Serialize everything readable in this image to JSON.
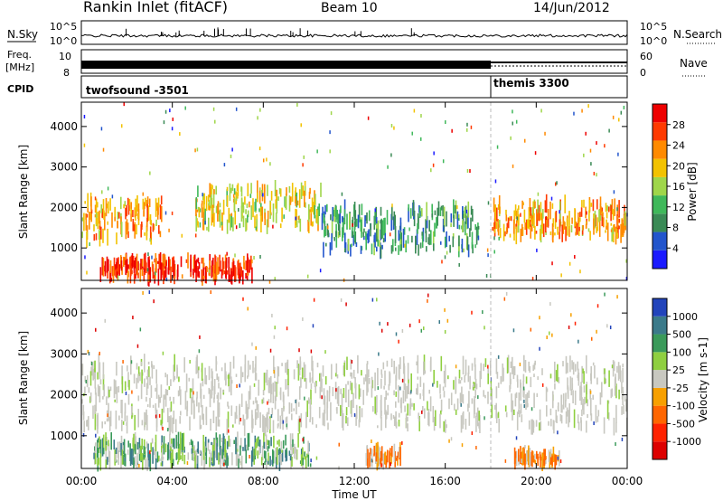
{
  "header": {
    "station": "Rankin Inlet (fitACF)",
    "beam": "Beam 10",
    "date": "14/Jun/2012"
  },
  "left_labels": {
    "nsky": "N.Sky",
    "freq": "Freq.",
    "freq_unit": "[MHz]",
    "cpid": "CPID"
  },
  "right_labels": {
    "nsearch": "N.Search",
    "nave": "Nave"
  },
  "panel_ticks": {
    "noise_left": [
      "10^5",
      "10^0"
    ],
    "noise_right": [
      "10^5",
      "10^0"
    ],
    "freq_left": [
      "10",
      "8"
    ],
    "nave_right": [
      "60",
      "0"
    ]
  },
  "cpid_segments": [
    {
      "label": "twofsound -3501",
      "start_hour": 0
    },
    {
      "label": "themis 3300",
      "start_hour": 18
    }
  ],
  "colors": {
    "scale": [
      "#1a1aff",
      "#2255cc",
      "#3a8a55",
      "#3fb85a",
      "#9fd64a",
      "#f2c200",
      "#ff8a00",
      "#ff3a00",
      "#ee0000"
    ],
    "velocity": [
      "#2244bb",
      "#3b7a8a",
      "#3a9a5a",
      "#8fcf40",
      "#c8c8c0",
      "#f7a000",
      "#ff6600",
      "#ff2200",
      "#dd0000"
    ]
  },
  "chart_data": [
    {
      "type": "heatmap",
      "title": "",
      "xlabel": "Time UT",
      "ylabel": "Slant Range [km]",
      "x_range_hours": [
        0,
        24
      ],
      "x_ticks": [
        "00:00",
        "04:00",
        "08:00",
        "12:00",
        "16:00",
        "20:00",
        "00:00"
      ],
      "y_range": [
        200,
        4600
      ],
      "y_ticks": [
        1000,
        2000,
        3000,
        4000
      ],
      "colorbar": {
        "label": "Power [dB]",
        "ticks": [
          4,
          8,
          12,
          16,
          20,
          24,
          28
        ],
        "range": [
          0,
          32
        ]
      },
      "features": [
        {
          "desc": "ground scatter band",
          "t_start": 0.8,
          "t_end": 7.5,
          "r_min": 250,
          "r_max": 700,
          "value": 28
        },
        {
          "desc": "ionospheric band early",
          "t_start": 0.0,
          "t_end": 3.5,
          "r_min": 1200,
          "r_max": 2200,
          "value": 22
        },
        {
          "desc": "ionospheric band morning",
          "t_start": 5.0,
          "t_end": 10.5,
          "r_min": 1500,
          "r_max": 2500,
          "value": 18
        },
        {
          "desc": "mid-day patches",
          "t_start": 10.5,
          "t_end": 17.5,
          "r_min": 900,
          "r_max": 2000,
          "value": 10
        },
        {
          "desc": "evening band",
          "t_start": 18.0,
          "t_end": 24.0,
          "r_min": 1300,
          "r_max": 2100,
          "value": 22
        }
      ]
    },
    {
      "type": "heatmap",
      "title": "",
      "xlabel": "Time UT",
      "ylabel": "Slant Range [km]",
      "x_range_hours": [
        0,
        24
      ],
      "x_ticks": [
        "00:00",
        "04:00",
        "08:00",
        "12:00",
        "16:00",
        "20:00",
        "00:00"
      ],
      "y_range": [
        200,
        4600
      ],
      "y_ticks": [
        1000,
        2000,
        3000,
        4000
      ],
      "colorbar": {
        "label": "Velocity [m s-1]",
        "tick_labels": [
          "1000",
          "500",
          "100",
          "25",
          "-25",
          "-100",
          "-500",
          "-1000"
        ]
      },
      "features": [
        {
          "desc": "ground scatter grey",
          "t_start": 0.0,
          "t_end": 24.0,
          "r_min": 1200,
          "r_max": 2800,
          "value": 0
        },
        {
          "desc": "low range mixed",
          "t_start": 0.5,
          "t_end": 10.0,
          "r_min": 300,
          "r_max": 900,
          "value": 80
        },
        {
          "desc": "negative velocity patch",
          "t_start": 12.5,
          "t_end": 14.0,
          "r_min": 350,
          "r_max": 650,
          "value": -300
        },
        {
          "desc": "evening negative patch",
          "t_start": 19.0,
          "t_end": 21.0,
          "r_min": 350,
          "r_max": 550,
          "value": -300
        }
      ]
    }
  ]
}
